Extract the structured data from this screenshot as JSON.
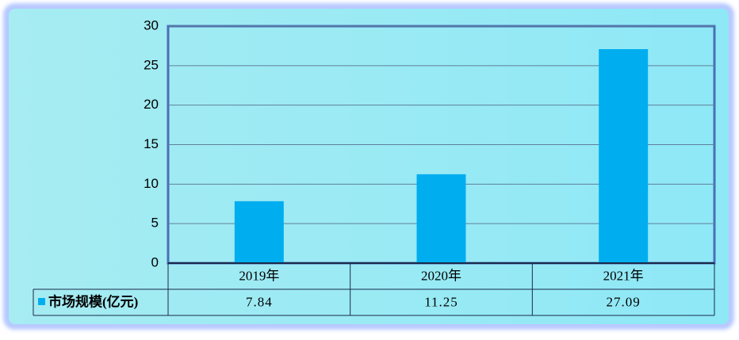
{
  "chart_data": {
    "type": "bar",
    "categories": [
      "2019年",
      "2020年",
      "2021年"
    ],
    "series": [
      {
        "name": "市场规模(亿元)",
        "color": "#00aeef",
        "values": [
          7.84,
          11.25,
          27.09
        ]
      }
    ],
    "ylim": [
      0,
      30
    ],
    "yticks": [
      0,
      5,
      10,
      15,
      20,
      25,
      30
    ],
    "grid": true
  }
}
